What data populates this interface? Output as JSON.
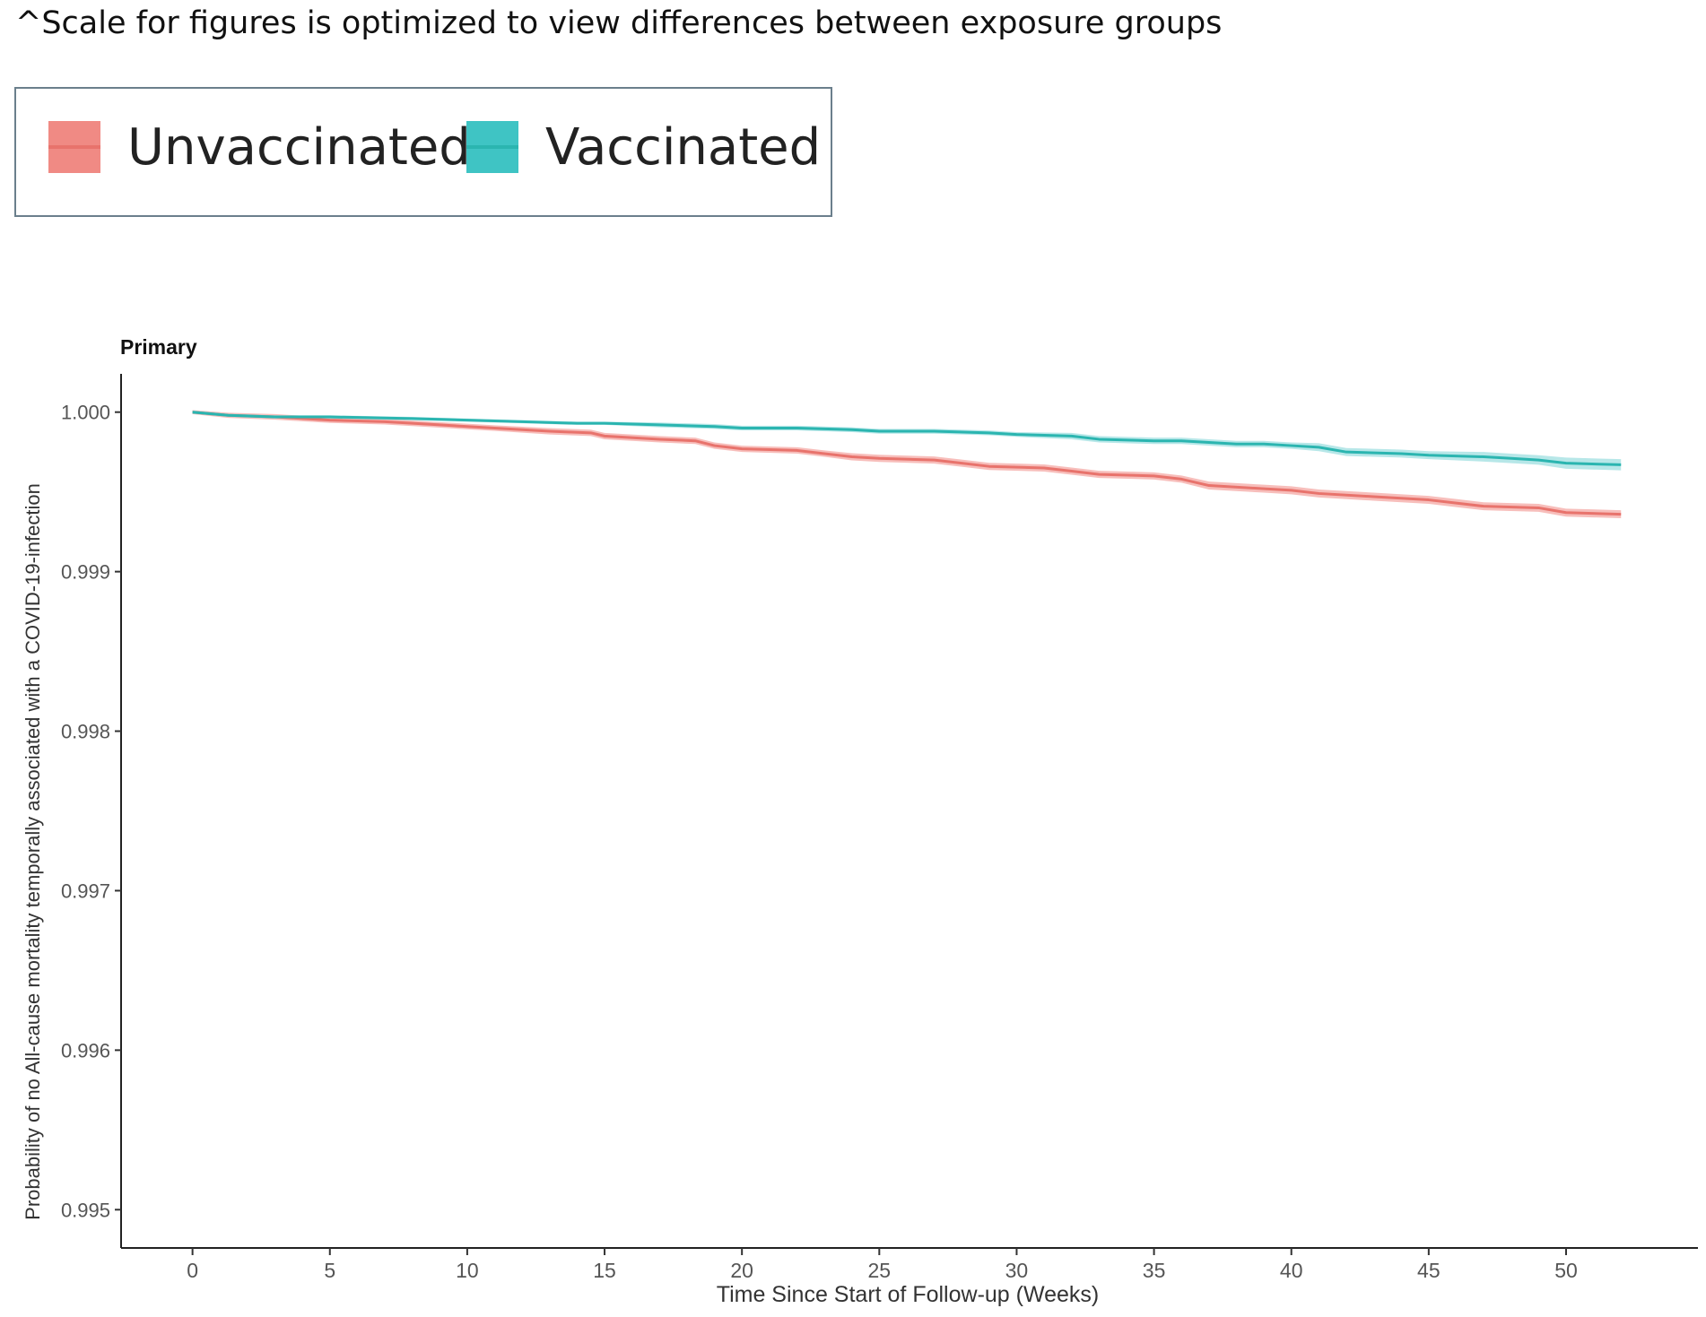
{
  "note": "^Scale for figures is optimized to view differences between exposure groups",
  "legend": {
    "items": [
      {
        "label": "Unvaccinated",
        "color": "#f08a84"
      },
      {
        "label": "Vaccinated",
        "color": "#3fc4c4"
      }
    ]
  },
  "chart_data": {
    "type": "line",
    "title": "Primary",
    "xlabel": "Time Since Start of Follow-up (Weeks)",
    "ylabel": "Probability of no All-cause mortality temporally associated with a COVID-19-infection",
    "xlim": [
      -2.6,
      54.8
    ],
    "ylim": [
      0.99476,
      1.00024
    ],
    "xticks": [
      0,
      5,
      10,
      15,
      20,
      25,
      30,
      35,
      40,
      45,
      50
    ],
    "yticks": [
      "1.000",
      "0.999",
      "0.998",
      "0.997",
      "0.996",
      "0.995"
    ],
    "grid": false,
    "legend_position": "top-left",
    "series": [
      {
        "name": "Unvaccinated",
        "color": "#e8736c",
        "ribbon_color": "#f4a8a4",
        "x": [
          0,
          1.3,
          3,
          5,
          7,
          9,
          11,
          13,
          14.5,
          15,
          17,
          18.3,
          19,
          20,
          22,
          23,
          24,
          25,
          27,
          28,
          29,
          31,
          32,
          33,
          35,
          36,
          37,
          39,
          40,
          41,
          43,
          45,
          46,
          47,
          49,
          50,
          52
        ],
        "y": [
          1.0,
          0.99998,
          0.99997,
          0.99995,
          0.99994,
          0.99992,
          0.9999,
          0.99988,
          0.99987,
          0.99985,
          0.99983,
          0.99982,
          0.99979,
          0.99977,
          0.99976,
          0.99974,
          0.99972,
          0.99971,
          0.9997,
          0.99968,
          0.99966,
          0.99965,
          0.99963,
          0.99961,
          0.9996,
          0.99958,
          0.99954,
          0.99952,
          0.99951,
          0.99949,
          0.99947,
          0.99945,
          0.99943,
          0.99941,
          0.9994,
          0.99937,
          0.99936
        ],
        "band": [
          2.5e-05,
          3.25e-05,
          3.5e-05,
          3.5e-05,
          3.5e-05,
          3.5e-05,
          3.5e-05,
          4e-05,
          4e-05,
          4e-05,
          4e-05,
          4e-05,
          4e-05,
          4e-05,
          4e-05,
          4e-05,
          4.5e-05,
          4.5e-05,
          4.5e-05,
          4.5e-05,
          4.5e-05,
          4.5e-05,
          4.5e-05,
          4.5e-05,
          4.5e-05,
          4.5e-05,
          5e-05,
          5e-05,
          5e-05,
          5e-05,
          5e-05,
          5e-05,
          5e-05,
          5e-05,
          5e-05,
          5e-05,
          5e-05
        ]
      },
      {
        "name": "Vaccinated",
        "color": "#2bb5b0",
        "ribbon_color": "#9fdfe0",
        "x": [
          0,
          1.3,
          3,
          5,
          8,
          10,
          12,
          14,
          15,
          17,
          19,
          20,
          22,
          24,
          25,
          27,
          29,
          30,
          32,
          33,
          35,
          36,
          38,
          39,
          40,
          41,
          42,
          44,
          45,
          47,
          48,
          49,
          50,
          52
        ],
        "y": [
          1.0,
          0.99998,
          0.99997,
          0.99997,
          0.99996,
          0.99995,
          0.99994,
          0.99993,
          0.99993,
          0.99992,
          0.99991,
          0.9999,
          0.9999,
          0.99989,
          0.99988,
          0.99988,
          0.99987,
          0.99986,
          0.99985,
          0.99983,
          0.99982,
          0.99982,
          0.9998,
          0.9998,
          0.99979,
          0.99978,
          0.99975,
          0.99974,
          0.99973,
          0.99972,
          0.99971,
          0.9997,
          0.99968,
          0.99967
        ],
        "band": [
          2e-05,
          2e-05,
          2e-05,
          2e-05,
          2e-05,
          2e-05,
          2e-05,
          2e-05,
          2e-05,
          3e-05,
          3e-05,
          3e-05,
          3e-05,
          3e-05,
          3e-05,
          3e-05,
          3e-05,
          3e-05,
          4e-05,
          4e-05,
          4e-05,
          4e-05,
          4e-05,
          4e-05,
          4e-05,
          5e-05,
          5e-05,
          5e-05,
          5e-05,
          6e-05,
          6e-05,
          6e-05,
          7e-05,
          7e-05
        ]
      }
    ]
  }
}
